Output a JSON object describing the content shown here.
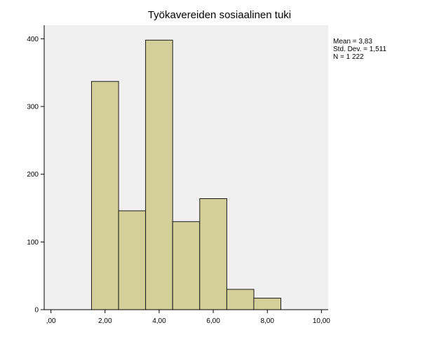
{
  "chart_data": {
    "type": "bar",
    "title": "Työkavereiden sosiaalinen tuki",
    "xlabel": "",
    "ylabel": "",
    "x_ticks": [
      ",00",
      "2,00",
      "4,00",
      "6,00",
      "8,00",
      "10,00"
    ],
    "y_ticks": [
      "0",
      "100",
      "200",
      "300",
      "400"
    ],
    "xlim": [
      -0.25,
      10.25
    ],
    "ylim": [
      0,
      420
    ],
    "bin_width": 1,
    "bins": [
      {
        "center": 2,
        "value": 337
      },
      {
        "center": 3,
        "value": 146
      },
      {
        "center": 4,
        "value": 398
      },
      {
        "center": 5,
        "value": 130
      },
      {
        "center": 6,
        "value": 164
      },
      {
        "center": 7,
        "value": 30
      },
      {
        "center": 8,
        "value": 17
      }
    ],
    "stats": [
      "Mean = 3,83",
      "Std. Dev. = 1,511",
      "N = 1 222"
    ],
    "colors": {
      "bar_fill": "#d4cf98",
      "bar_stroke": "#1a1a1a",
      "plot_bg": "#f0f0f0",
      "axis": "#000000"
    }
  }
}
